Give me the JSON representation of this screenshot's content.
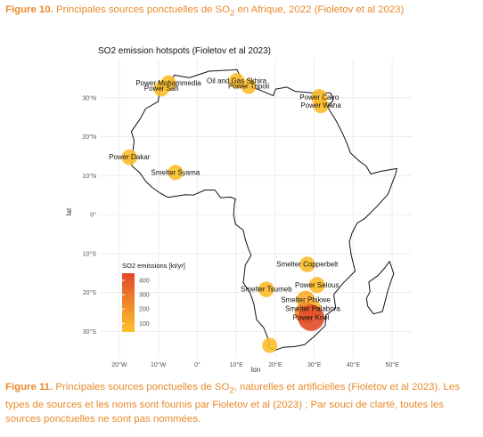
{
  "caption_top": {
    "prefix": "Figure 10.",
    "text_before_sub": " Principales sources ponctuelles de SO",
    "subscript": "2",
    "text_after_sub": " en Afrique, 2022 (Fioletov et al 2023)"
  },
  "caption_bottom": {
    "prefix": "Figure 11.",
    "text_before_sub": " Principales sources ponctuelles de SO",
    "subscript": "2",
    "text_after_sub": ", naturelles et artificielles (Fioletov et al 2023). Les types de sources et les noms sont fournis par Fioletov et al (2023) ; Par souci de clarté, toutes les sources ponctuelles ne sont pas nommées."
  },
  "colors": {
    "caption": "#e88a2a",
    "low": "#fdc32b",
    "high": "#e0482b"
  },
  "chart_data": {
    "type": "map-scatter",
    "title": "SO2 emission hotspots (Fioletov et al 2023)",
    "xlabel": "lon",
    "ylabel": "lat",
    "xlim": [
      -25,
      55
    ],
    "ylim": [
      -37,
      40
    ],
    "x_ticks": [
      {
        "value": -20,
        "label": "20°W"
      },
      {
        "value": -10,
        "label": "10°W"
      },
      {
        "value": 0,
        "label": "0°"
      },
      {
        "value": 10,
        "label": "10°E"
      },
      {
        "value": 20,
        "label": "20°E"
      },
      {
        "value": 30,
        "label": "30°E"
      },
      {
        "value": 40,
        "label": "40°E"
      },
      {
        "value": 50,
        "label": "50°E"
      }
    ],
    "y_ticks": [
      {
        "value": 30,
        "label": "30°N"
      },
      {
        "value": 20,
        "label": "20°N"
      },
      {
        "value": 10,
        "label": "10°N"
      },
      {
        "value": 0,
        "label": "0°"
      },
      {
        "value": -10,
        "label": "10°S"
      },
      {
        "value": -20,
        "label": "20°S"
      },
      {
        "value": -30,
        "label": "30°S"
      }
    ],
    "legend": {
      "title": "SO2 emissions [kt/yr]",
      "ticks": [
        400,
        300,
        200,
        100
      ],
      "range": [
        40,
        450
      ],
      "placement": "bottom-left"
    },
    "points": [
      {
        "label": "Power  Mohammedia",
        "lon": -7.4,
        "lat": 33.7,
        "value": 60
      },
      {
        "label": "Power  Safi",
        "lon": -9.2,
        "lat": 32.3,
        "value": 60
      },
      {
        "label": "Oil and Gas Skhira",
        "lon": 10.1,
        "lat": 34.3,
        "value": 60
      },
      {
        "label": "Power  Tripoli",
        "lon": 13.2,
        "lat": 32.9,
        "value": 55
      },
      {
        "label": "Power  Cairo",
        "lon": 31.3,
        "lat": 30.1,
        "value": 70
      },
      {
        "label": "Power  Waha",
        "lon": 31.7,
        "lat": 28.0,
        "value": 60
      },
      {
        "label": "Power  Dakar",
        "lon": -17.4,
        "lat": 14.7,
        "value": 60
      },
      {
        "label": "Smelter Syama",
        "lon": -5.6,
        "lat": 10.8,
        "value": 55
      },
      {
        "label": "Smelter Copperbelt",
        "lon": 28.2,
        "lat": -12.8,
        "value": 60
      },
      {
        "label": "Power  Selous",
        "lon": 30.7,
        "lat": -18.1,
        "value": 65
      },
      {
        "label": "Smelter Tsumeb",
        "lon": 17.7,
        "lat": -19.2,
        "value": 60
      },
      {
        "label": "Smelter Phikwe",
        "lon": 27.8,
        "lat": -21.9,
        "value": 110
      },
      {
        "label": "Smelter Palabora",
        "lon": 29.6,
        "lat": -24.2,
        "value": 90
      },
      {
        "label": "",
        "lon": 27.8,
        "lat": -25.3,
        "value": 220
      },
      {
        "label": "Power  Kriel",
        "lon": 29.2,
        "lat": -26.5,
        "value": 430
      },
      {
        "label": "",
        "lon": 18.6,
        "lat": -33.6,
        "value": 55
      }
    ]
  }
}
